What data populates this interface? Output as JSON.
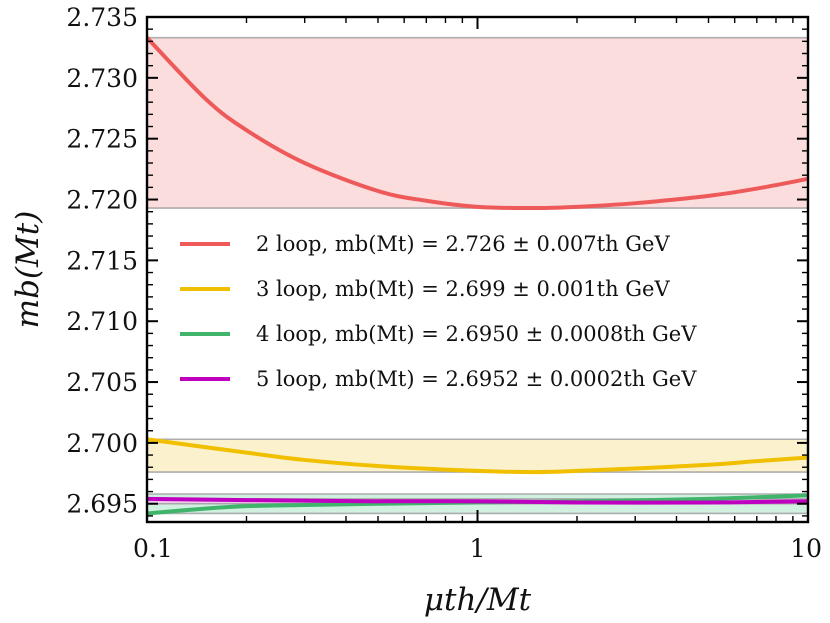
{
  "chart_data": {
    "type": "line",
    "xscale": "log",
    "xlim": [
      0.1,
      10
    ],
    "ylim": [
      2.6935,
      2.735
    ],
    "xlabel": "μth/Mt",
    "ylabel": "mb(Mt)",
    "xticks": [
      {
        "value": 0.1,
        "label": "0.1"
      },
      {
        "value": 1,
        "label": "1"
      },
      {
        "value": 10,
        "label": "10"
      }
    ],
    "yticks": [
      {
        "value": 2.695,
        "label": "2.695"
      },
      {
        "value": 2.7,
        "label": "2.700"
      },
      {
        "value": 2.705,
        "label": "2.705"
      },
      {
        "value": 2.71,
        "label": "2.710"
      },
      {
        "value": 2.715,
        "label": "2.715"
      },
      {
        "value": 2.72,
        "label": "2.720"
      },
      {
        "value": 2.725,
        "label": "2.725"
      },
      {
        "value": 2.73,
        "label": "2.730"
      },
      {
        "value": 2.735,
        "label": "2.735"
      }
    ],
    "legend_position": "center-right",
    "series": [
      {
        "name": "2 loop",
        "legend": "2 loop, mb(Mt) = 2.726 ± 0.007th GeV",
        "color": "#ee5a5a",
        "band_color": "#fbd9da",
        "band": [
          2.7193,
          2.7333
        ],
        "x": [
          0.1,
          0.15,
          0.2,
          0.3,
          0.5,
          0.7,
          1.0,
          1.5,
          2.0,
          3.0,
          5.0,
          7.0,
          10.0
        ],
        "y": [
          2.7333,
          2.7283,
          2.7257,
          2.723,
          2.7207,
          2.7199,
          2.7194,
          2.7193,
          2.7194,
          2.7197,
          2.7203,
          2.7209,
          2.7217
        ]
      },
      {
        "name": "3 loop",
        "legend": "3 loop, mb(Mt) = 2.699 ± 0.001th GeV",
        "color": "#f0c000",
        "band_color": "#fbf0c8",
        "band": [
          2.6976,
          2.7003
        ],
        "x": [
          0.1,
          0.2,
          0.3,
          0.5,
          1.0,
          1.5,
          2.0,
          3.0,
          5.0,
          7.0,
          10.0
        ],
        "y": [
          2.7003,
          2.6992,
          2.6986,
          2.6981,
          2.6977,
          2.6976,
          2.6977,
          2.6979,
          2.6982,
          2.6985,
          2.6988
        ]
      },
      {
        "name": "4 loop",
        "legend": "4 loop, mb(Mt) = 2.6950 ± 0.0008th GeV",
        "color": "#3fb46a",
        "band_color": "#cdeedd",
        "band": [
          2.6942,
          2.6958
        ],
        "x": [
          0.1,
          0.15,
          0.2,
          0.3,
          0.5,
          1.0,
          2.0,
          5.0,
          10.0
        ],
        "y": [
          2.6942,
          2.6946,
          2.6948,
          2.6949,
          2.695,
          2.6951,
          2.6952,
          2.6954,
          2.6957
        ]
      },
      {
        "name": "5 loop",
        "legend": "5 loop, mb(Mt) = 2.6952 ± 0.0002th GeV",
        "color": "#c000c0",
        "band_color": "#f2c8f2",
        "band": [
          2.695,
          2.6954
        ],
        "x": [
          0.1,
          0.2,
          0.5,
          1.0,
          2.0,
          5.0,
          10.0
        ],
        "y": [
          2.6954,
          2.6953,
          2.6952,
          2.6952,
          2.6951,
          2.6951,
          2.6952
        ]
      }
    ]
  }
}
